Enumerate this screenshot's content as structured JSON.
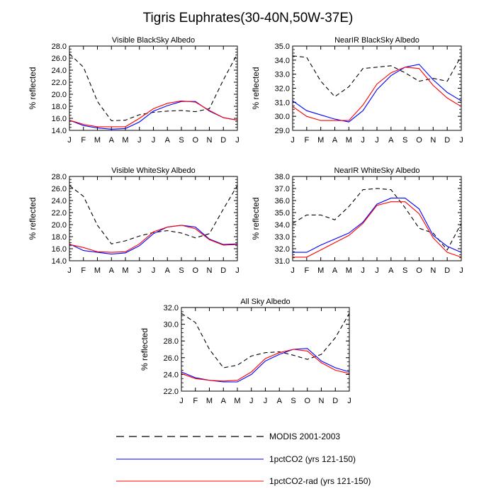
{
  "figure": {
    "title": "Tigris Euphrates(30-40N,50W-37E)"
  },
  "legend": {
    "items": [
      {
        "label": "MODIS 2001-2003",
        "color": "#000000",
        "dash": true
      },
      {
        "label": "1pctCO2 (yrs 121-150)",
        "color": "#0000ff",
        "dash": false
      },
      {
        "label": "1pctCO2-rad (yrs 121-150)",
        "color": "#ff0000",
        "dash": false
      }
    ]
  },
  "chart_data": [
    {
      "type": "line",
      "title": "Visible BlackSky Albedo",
      "ylabel": "% reflected",
      "xlabel": "",
      "categories": [
        "J",
        "F",
        "M",
        "A",
        "M",
        "J",
        "J",
        "A",
        "S",
        "O",
        "N",
        "D",
        "J"
      ],
      "ylim": [
        14.0,
        28.0
      ],
      "yticks": [
        "14.0",
        "16.0",
        "18.0",
        "20.0",
        "22.0",
        "24.0",
        "26.0",
        "28.0"
      ],
      "series": [
        {
          "key": "modis",
          "values": [
            26.7,
            24.5,
            18.8,
            15.6,
            15.7,
            16.6,
            17.0,
            17.2,
            17.3,
            17.1,
            17.6,
            22.4,
            26.7
          ]
        },
        {
          "key": "co2",
          "values": [
            15.7,
            14.8,
            14.4,
            14.2,
            14.3,
            15.4,
            17.2,
            18.1,
            18.8,
            18.8,
            17.2,
            16.1,
            15.7
          ]
        },
        {
          "key": "rad",
          "values": [
            15.7,
            15.0,
            14.6,
            14.6,
            14.6,
            16.0,
            17.6,
            18.5,
            18.9,
            18.7,
            17.3,
            16.1,
            15.7
          ]
        }
      ]
    },
    {
      "type": "line",
      "title": "NearIR BlackSky Albedo",
      "ylabel": "% reflected",
      "xlabel": "",
      "categories": [
        "J",
        "F",
        "M",
        "A",
        "M",
        "J",
        "J",
        "A",
        "S",
        "O",
        "N",
        "D",
        "J"
      ],
      "ylim": [
        29.0,
        35.0
      ],
      "yticks": [
        "29.0",
        "30.0",
        "31.0",
        "32.0",
        "33.0",
        "34.0",
        "35.0"
      ],
      "series": [
        {
          "key": "modis",
          "values": [
            34.3,
            34.2,
            32.5,
            31.4,
            32.1,
            33.4,
            33.5,
            33.6,
            33.1,
            32.5,
            32.7,
            32.5,
            34.3
          ]
        },
        {
          "key": "co2",
          "values": [
            31.1,
            30.4,
            30.1,
            29.8,
            29.6,
            30.4,
            31.9,
            32.9,
            33.5,
            33.7,
            32.6,
            31.7,
            31.1
          ]
        },
        {
          "key": "rad",
          "values": [
            30.7,
            30.0,
            29.7,
            29.7,
            29.7,
            30.8,
            32.3,
            33.1,
            33.5,
            33.4,
            32.2,
            31.3,
            30.7
          ]
        }
      ]
    },
    {
      "type": "line",
      "title": "Visible WhiteSky Albedo",
      "ylabel": "% reflected",
      "xlabel": "",
      "categories": [
        "J",
        "F",
        "M",
        "A",
        "M",
        "J",
        "J",
        "A",
        "S",
        "O",
        "N",
        "D",
        "J"
      ],
      "ylim": [
        14.0,
        28.0
      ],
      "yticks": [
        "14.0",
        "16.0",
        "18.0",
        "20.0",
        "22.0",
        "24.0",
        "26.0",
        "28.0"
      ],
      "series": [
        {
          "key": "modis",
          "values": [
            26.5,
            24.7,
            19.9,
            16.8,
            17.3,
            18.1,
            18.7,
            19.0,
            18.6,
            17.8,
            18.5,
            22.6,
            26.5
          ]
        },
        {
          "key": "co2",
          "values": [
            16.8,
            15.7,
            15.4,
            15.1,
            15.3,
            16.5,
            18.5,
            19.6,
            19.9,
            19.6,
            17.6,
            16.7,
            16.8
          ]
        },
        {
          "key": "rad",
          "values": [
            16.7,
            16.2,
            15.5,
            15.4,
            15.5,
            16.8,
            18.8,
            19.6,
            19.9,
            19.3,
            17.5,
            16.6,
            16.7
          ]
        }
      ]
    },
    {
      "type": "line",
      "title": "NearIR WhiteSky Albedo",
      "ylabel": "% reflected",
      "xlabel": "",
      "categories": [
        "J",
        "F",
        "M",
        "A",
        "M",
        "J",
        "J",
        "A",
        "S",
        "O",
        "N",
        "D",
        "J"
      ],
      "ylim": [
        31.0,
        38.0
      ],
      "yticks": [
        "31.0",
        "32.0",
        "33.0",
        "34.0",
        "35.0",
        "36.0",
        "37.0",
        "38.0"
      ],
      "series": [
        {
          "key": "modis",
          "values": [
            34.1,
            34.8,
            34.8,
            34.4,
            35.5,
            36.9,
            37.0,
            36.9,
            35.4,
            33.7,
            33.3,
            31.9,
            34.1
          ]
        },
        {
          "key": "co2",
          "values": [
            31.7,
            31.7,
            32.3,
            32.8,
            33.3,
            34.2,
            35.7,
            36.2,
            36.2,
            35.3,
            33.1,
            32.2,
            31.7
          ]
        },
        {
          "key": "rad",
          "values": [
            31.3,
            31.3,
            31.9,
            32.5,
            33.1,
            34.1,
            35.6,
            35.9,
            35.9,
            34.9,
            32.9,
            31.7,
            31.3
          ]
        }
      ]
    },
    {
      "type": "line",
      "title": "All Sky Albedo",
      "ylabel": "% reflected",
      "xlabel": "",
      "categories": [
        "J",
        "F",
        "M",
        "A",
        "M",
        "J",
        "J",
        "A",
        "S",
        "O",
        "N",
        "D",
        "J"
      ],
      "ylim": [
        22.0,
        32.0
      ],
      "yticks": [
        "22.0",
        "24.0",
        "26.0",
        "28.0",
        "30.0",
        "32.0"
      ],
      "series": [
        {
          "key": "modis",
          "values": [
            31.3,
            30.2,
            27.0,
            24.8,
            25.1,
            26.2,
            26.6,
            26.7,
            26.3,
            25.8,
            26.4,
            28.4,
            31.3
          ]
        },
        {
          "key": "co2",
          "values": [
            24.3,
            23.6,
            23.3,
            23.1,
            23.1,
            24.0,
            25.6,
            26.4,
            27.0,
            27.1,
            25.6,
            24.8,
            24.3
          ]
        },
        {
          "key": "rad",
          "values": [
            24.1,
            23.5,
            23.3,
            23.2,
            23.3,
            24.3,
            25.9,
            26.6,
            27.0,
            26.8,
            25.4,
            24.5,
            24.1
          ]
        }
      ]
    }
  ]
}
